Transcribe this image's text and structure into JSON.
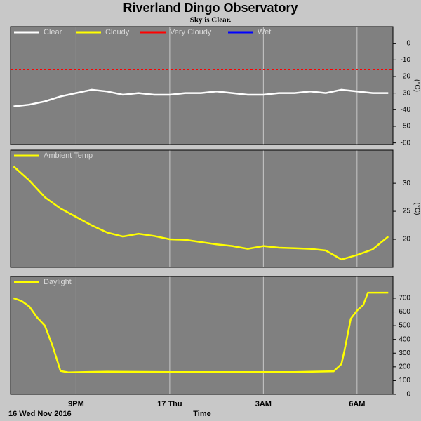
{
  "title": "Riverland Dingo Observatory",
  "subtitle": "Sky is Clear.",
  "date_label": "16 Wed Nov 2016",
  "x_label": "Time",
  "chart_data": [
    {
      "type": "line",
      "y_label": "(°C)",
      "xlim": [
        18.9,
        31.15
      ],
      "ylim": [
        -61,
        10
      ],
      "xticks": [
        {
          "value": 21,
          "label": "9PM"
        },
        {
          "value": 24,
          "label": "17 Thu"
        },
        {
          "value": 27,
          "label": "3AM"
        },
        {
          "value": 30,
          "label": "6AM"
        }
      ],
      "yticks": [
        0,
        -10,
        -20,
        -30,
        -40,
        -50,
        -60
      ],
      "legend": [
        {
          "name": "Clear",
          "color": "#ffffff"
        },
        {
          "name": "Cloudy",
          "color": "#ffff00"
        },
        {
          "name": "Very Cloudy",
          "color": "#ff0000"
        },
        {
          "name": "Wet",
          "color": "#0000ff"
        }
      ],
      "thresholds": [
        {
          "value": -16,
          "color": "#ff0000"
        }
      ],
      "series": [
        {
          "name": "Clear",
          "color": "#ffffff",
          "x": [
            19,
            19.5,
            20,
            20.5,
            21,
            21.5,
            22,
            22.5,
            23,
            23.5,
            24,
            24.5,
            25,
            25.5,
            26,
            26.5,
            27,
            27.5,
            28,
            28.5,
            29,
            29.5,
            30,
            30.5,
            31
          ],
          "values": [
            -38,
            -37,
            -35,
            -32,
            -30,
            -28,
            -29,
            -31,
            -30,
            -31,
            -31,
            -30,
            -30,
            -29,
            -30,
            -31,
            -31,
            -30,
            -30,
            -29,
            -30,
            -28,
            -29,
            -30,
            -30
          ]
        }
      ]
    },
    {
      "type": "line",
      "y_label": "(°C)",
      "xlim": [
        18.9,
        31.15
      ],
      "ylim": [
        15,
        35.9
      ],
      "xticks": [
        {
          "value": 21,
          "label": "9PM"
        },
        {
          "value": 24,
          "label": "17 Thu"
        },
        {
          "value": 27,
          "label": "3AM"
        },
        {
          "value": 30,
          "label": "6AM"
        }
      ],
      "yticks": [
        20,
        25,
        30
      ],
      "legend": [
        {
          "name": "Ambient Temp",
          "color": "#ffff00"
        }
      ],
      "series": [
        {
          "name": "Ambient Temp",
          "color": "#ffff00",
          "x": [
            19,
            19.5,
            20,
            20.5,
            21,
            21.5,
            22,
            22.5,
            23,
            23.5,
            24,
            24.5,
            25,
            25.5,
            26,
            26.5,
            27,
            27.5,
            28,
            28.5,
            29,
            29.5,
            30,
            30.5,
            31
          ],
          "values": [
            33,
            30.5,
            27.5,
            25.5,
            24,
            22.5,
            21.2,
            20.5,
            21,
            20.6,
            20,
            19.9,
            19.5,
            19.1,
            18.8,
            18.3,
            18.8,
            18.5,
            18.4,
            18.3,
            18,
            16.4,
            17.2,
            18.2,
            20.5
          ]
        }
      ]
    },
    {
      "type": "line",
      "xlim": [
        18.9,
        31.15
      ],
      "ylim": [
        0,
        858
      ],
      "xticks": [
        {
          "value": 21,
          "label": "9PM"
        },
        {
          "value": 24,
          "label": "17 Thu"
        },
        {
          "value": 27,
          "label": "3AM"
        },
        {
          "value": 30,
          "label": "6AM"
        }
      ],
      "yticks": [
        0,
        100,
        200,
        300,
        400,
        500,
        600,
        700
      ],
      "legend": [
        {
          "name": "Daylight",
          "color": "#ffff00"
        }
      ],
      "series": [
        {
          "name": "Daylight",
          "color": "#ffff00",
          "x": [
            19,
            19.25,
            19.5,
            19.75,
            20,
            20.25,
            20.5,
            20.75,
            22,
            24,
            26,
            28,
            29.25,
            29.5,
            29.6,
            29.8,
            30,
            30.2,
            30.35,
            31
          ],
          "values": [
            700,
            680,
            640,
            560,
            500,
            350,
            170,
            160,
            165,
            162,
            162,
            162,
            168,
            220,
            320,
            550,
            610,
            650,
            740,
            740
          ]
        }
      ]
    }
  ]
}
